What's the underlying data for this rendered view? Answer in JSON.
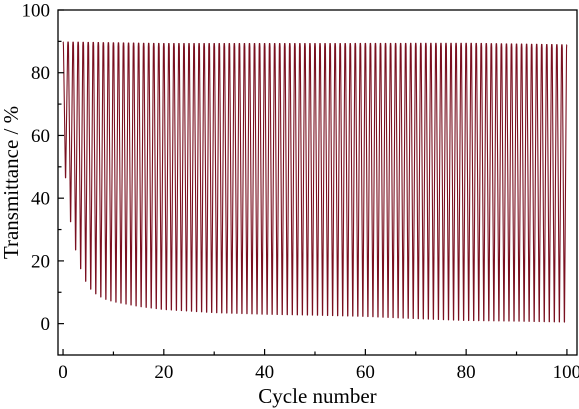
{
  "chart_data": {
    "type": "line",
    "title": "",
    "xlabel": "Cycle number",
    "ylabel": "Transmittance / %",
    "xlim": [
      -1,
      102
    ],
    "ylim": [
      -10,
      100
    ],
    "xticks": [
      0,
      20,
      40,
      60,
      80,
      100
    ],
    "yticks": [
      0,
      20,
      40,
      60,
      80,
      100
    ],
    "grid": false,
    "legend": "none",
    "series": [
      {
        "color": "#7a1020",
        "cycles": 100,
        "bleached_max": [
          [
            0,
            89.8
          ],
          [
            20,
            89.3
          ],
          [
            50,
            89.3
          ],
          [
            80,
            89.4
          ],
          [
            100,
            88.9
          ]
        ],
        "colored_min": [
          [
            0,
            55
          ],
          [
            1,
            38
          ],
          [
            2,
            27
          ],
          [
            3,
            20
          ],
          [
            4,
            15
          ],
          [
            5,
            12
          ],
          [
            6,
            10
          ],
          [
            8,
            8
          ],
          [
            10,
            7
          ],
          [
            15,
            5.5
          ],
          [
            20,
            4.5
          ],
          [
            30,
            3.5
          ],
          [
            40,
            3
          ],
          [
            50,
            2.7
          ],
          [
            60,
            2.3
          ],
          [
            70,
            1.6
          ],
          [
            80,
            1.0
          ],
          [
            90,
            0.8
          ],
          [
            100,
            0.5
          ]
        ]
      }
    ]
  }
}
